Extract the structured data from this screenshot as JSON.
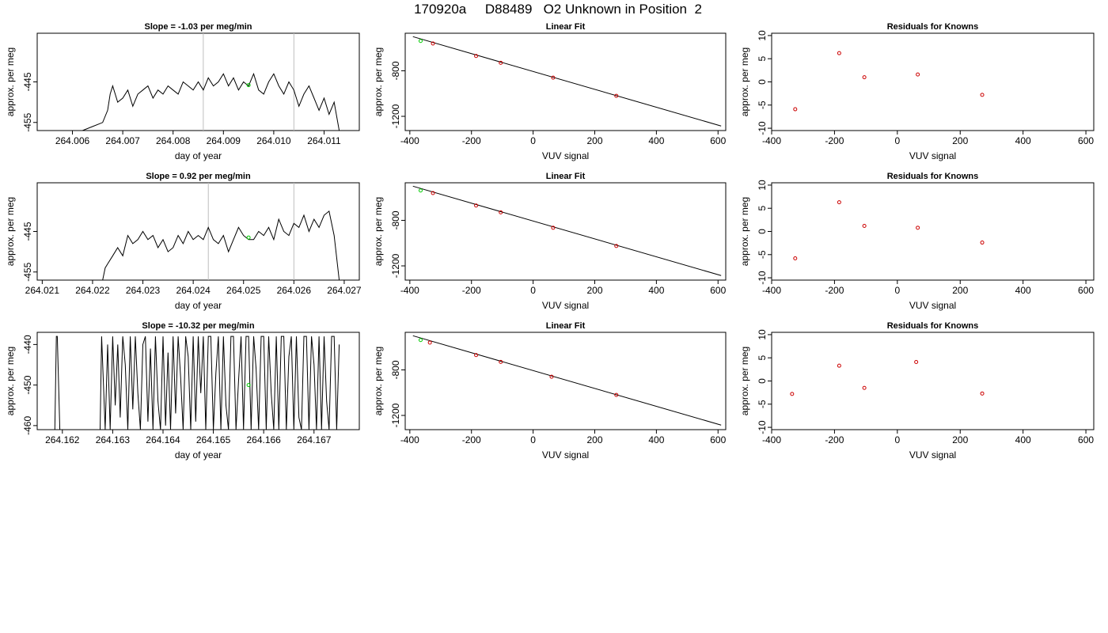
{
  "figure": {
    "title": "170920a     D88489   O2 Unknown in Position  2"
  },
  "colors": {
    "line": "#000000",
    "known_points": "#cc0000",
    "unknown_point": "#00cc00",
    "vertical_markers": "#bebebe"
  },
  "chart_data": [
    {
      "type": "line",
      "title": "Slope =  -1.03  per meg/min",
      "xlabel": "day of year",
      "ylabel": "approx. per meg",
      "xlim": [
        264.0053,
        264.0117
      ],
      "ylim": [
        -457,
        -433
      ],
      "xticks": [
        264.006,
        264.007,
        264.008,
        264.009,
        264.01,
        264.011
      ],
      "xtick_labels": [
        "264.006",
        "264.007",
        "264.008",
        "264.009",
        "264.010",
        "264.011"
      ],
      "yticks": [
        -455,
        -445
      ],
      "ytick_labels": [
        "-455",
        "-445"
      ],
      "vlines": [
        264.0086,
        264.0104
      ],
      "unknown_point": {
        "x": 264.0095,
        "y": -445.8
      },
      "series": [
        {
          "x": [
            264.0062,
            264.0064,
            264.0066,
            264.0067,
            264.00675,
            264.0068,
            264.0069,
            264.007,
            264.0071,
            264.0072,
            264.0073,
            264.0074,
            264.0075,
            264.0076,
            264.0077,
            264.0078,
            264.0079,
            264.008,
            264.0081,
            264.0082,
            264.0083,
            264.0084,
            264.0085,
            264.0086,
            264.0087,
            264.0088,
            264.0089,
            264.009,
            264.0091,
            264.0092,
            264.0093,
            264.0094,
            264.0095,
            264.0096,
            264.0097,
            264.0098,
            264.0099,
            264.01,
            264.0101,
            264.0102,
            264.0103,
            264.0104,
            264.0105,
            264.0106,
            264.0107,
            264.0108,
            264.0109,
            264.011,
            264.0111,
            264.0112,
            264.0113
          ],
          "y": [
            -457,
            -456,
            -455,
            -452,
            -448,
            -446,
            -450,
            -449,
            -447,
            -451,
            -448,
            -447,
            -446,
            -449,
            -447,
            -448,
            -446,
            -447,
            -448,
            -445,
            -446,
            -447,
            -445,
            -447,
            -444,
            -446,
            -445,
            -443,
            -446,
            -444,
            -447,
            -445,
            -446,
            -443,
            -447,
            -448,
            -445,
            -443,
            -446,
            -448,
            -445,
            -447,
            -451,
            -448,
            -446,
            -449,
            -452,
            -449,
            -453,
            -450,
            -457
          ]
        }
      ]
    },
    {
      "type": "scatter",
      "title": "Linear Fit",
      "xlabel": "VUV signal",
      "ylabel": "approx. per meg",
      "xlim": [
        -415,
        625
      ],
      "ylim": [
        -1325,
        -470
      ],
      "xticks": [
        -400,
        -200,
        0,
        200,
        400,
        600
      ],
      "xtick_labels": [
        "-400",
        "-200",
        "0",
        "200",
        "400",
        "600"
      ],
      "yticks": [
        -1200,
        -800
      ],
      "ytick_labels": [
        "-1200",
        "-800"
      ],
      "fit_line": {
        "x": [
          -390,
          610
        ],
        "y": [
          -500,
          -1285
        ]
      },
      "knowns": {
        "x": [
          -325,
          -185,
          -105,
          65,
          270
        ],
        "y": [
          -560,
          -670,
          -730,
          -860,
          -1020
        ]
      },
      "unknown": {
        "x": -365,
        "y": -538
      }
    },
    {
      "type": "scatter",
      "title": "Residuals for Knowns",
      "xlabel": "VUV signal",
      "ylabel": "approx. per meg",
      "xlim": [
        -400,
        625
      ],
      "ylim": [
        -10.5,
        10.5
      ],
      "xticks": [
        -400,
        -200,
        0,
        200,
        400,
        600
      ],
      "xtick_labels": [
        "-400",
        "-200",
        "0",
        "200",
        "400",
        "600"
      ],
      "yticks": [
        -10,
        -5,
        0,
        5,
        10
      ],
      "ytick_labels": [
        "-10",
        "-5",
        "0",
        "5",
        "10"
      ],
      "x": [
        -325,
        -185,
        -105,
        65,
        270
      ],
      "y": [
        -5.9,
        6.2,
        1.0,
        1.6,
        -2.8
      ]
    },
    {
      "type": "line",
      "title": "Slope =  0.92  per meg/min",
      "xlabel": "day of year",
      "ylabel": "approx. per meg",
      "xlim": [
        264.0209,
        264.0273
      ],
      "ylim": [
        -457,
        -433
      ],
      "xticks": [
        264.021,
        264.022,
        264.023,
        264.024,
        264.025,
        264.026,
        264.027
      ],
      "xtick_labels": [
        "264.021",
        "264.022",
        "264.023",
        "264.024",
        "264.025",
        "264.026",
        "264.027"
      ],
      "vlines": [
        264.0243,
        264.026
      ],
      "yticks": [
        -455,
        -445
      ],
      "ytick_labels": [
        "-455",
        "-445"
      ],
      "unknown_point": {
        "x": 264.0251,
        "y": -446.5
      },
      "series": [
        {
          "x": [
            264.0222,
            264.02225,
            264.0223,
            264.0224,
            264.0225,
            264.0226,
            264.0227,
            264.0228,
            264.0229,
            264.023,
            264.0231,
            264.0232,
            264.0233,
            264.0234,
            264.0235,
            264.0236,
            264.0237,
            264.0238,
            264.0239,
            264.024,
            264.0241,
            264.0242,
            264.0243,
            264.0244,
            264.0245,
            264.0246,
            264.0247,
            264.0248,
            264.0249,
            264.025,
            264.0251,
            264.0252,
            264.0253,
            264.0254,
            264.0255,
            264.0256,
            264.0257,
            264.0258,
            264.0259,
            264.026,
            264.0261,
            264.0262,
            264.0263,
            264.0264,
            264.0265,
            264.0266,
            264.0267,
            264.0268,
            264.0269
          ],
          "y": [
            -457,
            -454,
            -453,
            -451,
            -449,
            -451,
            -446,
            -448,
            -447,
            -445,
            -447,
            -446,
            -449,
            -447,
            -450,
            -449,
            -446,
            -448,
            -445,
            -447,
            -446,
            -447,
            -444,
            -447,
            -448,
            -446,
            -450,
            -447,
            -444,
            -446,
            -447,
            -447,
            -445,
            -446,
            -444,
            -447,
            -442,
            -445,
            -446,
            -443,
            -444,
            -441,
            -445,
            -442,
            -444,
            -441,
            -440,
            -446,
            -457
          ]
        }
      ]
    },
    {
      "type": "scatter",
      "title": "Linear Fit",
      "xlabel": "VUV signal",
      "ylabel": "approx. per meg",
      "xlim": [
        -415,
        625
      ],
      "ylim": [
        -1325,
        -470
      ],
      "xticks": [
        -400,
        -200,
        0,
        200,
        400,
        600
      ],
      "xtick_labels": [
        "-400",
        "-200",
        "0",
        "200",
        "400",
        "600"
      ],
      "yticks": [
        -1200,
        -800
      ],
      "ytick_labels": [
        "-1200",
        "-800"
      ],
      "fit_line": {
        "x": [
          -390,
          610
        ],
        "y": [
          -500,
          -1285
        ]
      },
      "knowns": {
        "x": [
          -325,
          -185,
          -105,
          65,
          270
        ],
        "y": [
          -560,
          -670,
          -730,
          -865,
          -1025
        ]
      },
      "unknown": {
        "x": -365,
        "y": -538
      }
    },
    {
      "type": "scatter",
      "title": "Residuals for Knowns",
      "xlabel": "VUV signal",
      "ylabel": "approx. per meg",
      "xlim": [
        -400,
        625
      ],
      "ylim": [
        -10.5,
        10.5
      ],
      "xticks": [
        -400,
        -200,
        0,
        200,
        400,
        600
      ],
      "xtick_labels": [
        "-400",
        "-200",
        "0",
        "200",
        "400",
        "600"
      ],
      "yticks": [
        -10,
        -5,
        0,
        5,
        10
      ],
      "ytick_labels": [
        "-10",
        "-5",
        "0",
        "5",
        "10"
      ],
      "x": [
        -325,
        -185,
        -105,
        65,
        270
      ],
      "y": [
        -5.8,
        6.3,
        1.2,
        0.8,
        -2.4
      ]
    },
    {
      "type": "line",
      "title": "Slope =  -10.32  per meg/min",
      "xlabel": "day of year",
      "ylabel": "approx. per meg",
      "xlim": [
        264.1615,
        264.1679
      ],
      "ylim": [
        -461,
        -437
      ],
      "xticks": [
        264.162,
        264.163,
        264.164,
        264.165,
        264.166,
        264.167
      ],
      "xtick_labels": [
        "264.162",
        "264.163",
        "264.164",
        "264.165",
        "264.166",
        "264.167"
      ],
      "yticks": [
        -460,
        -450,
        -440
      ],
      "ytick_labels": [
        "-460",
        "-450",
        "-440"
      ],
      "vlines": [],
      "unknown_point": {
        "x": 264.1657,
        "y": -450
      },
      "series": [
        {
          "x": [
            264.16185,
            264.16188,
            264.1619,
            264.16195,
            264.16275,
            264.16278,
            264.16285,
            264.1629,
            264.16295,
            264.163,
            264.16305,
            264.1631,
            264.16315,
            264.1632,
            264.16325,
            264.1633,
            264.16335,
            264.1634,
            264.16345,
            264.1635,
            264.16355,
            264.1636,
            264.16365,
            264.1637,
            264.16375,
            264.1638,
            264.16385,
            264.1639,
            264.16395,
            264.164,
            264.16405,
            264.1641,
            264.16415,
            264.1642,
            264.16425,
            264.1643,
            264.16435,
            264.1644,
            264.16445,
            264.1645,
            264.16455,
            264.1646,
            264.16465,
            264.1647,
            264.16475,
            264.1648,
            264.16485,
            264.1649,
            264.16495,
            264.165,
            264.16505,
            264.1651,
            264.16515,
            264.1652,
            264.16525,
            264.1653,
            264.16535,
            264.1654,
            264.16545,
            264.1655,
            264.16555,
            264.1656,
            264.16565,
            264.1657,
            264.16575,
            264.1658,
            264.16585,
            264.1659,
            264.16595,
            264.166,
            264.16605,
            264.1661,
            264.16615,
            264.1662,
            264.16625,
            264.1663,
            264.16635,
            264.1664,
            264.16645,
            264.1665,
            264.16655,
            264.1666,
            264.16665,
            264.1667,
            264.16675,
            264.1668,
            264.16685,
            264.1669,
            264.16695,
            264.167,
            264.16705,
            264.1671,
            264.16715,
            264.1672,
            264.16725,
            264.1673,
            264.16735,
            264.1674,
            264.16745,
            264.1675
          ],
          "y": [
            -461,
            -438,
            -438,
            -461,
            -461,
            -438,
            -461,
            -440,
            -461,
            -438,
            -455,
            -440,
            -458,
            -438,
            -445,
            -461,
            -438,
            -456,
            -438,
            -452,
            -461,
            -440,
            -438,
            -459,
            -441,
            -461,
            -438,
            -454,
            -461,
            -438,
            -460,
            -442,
            -461,
            -438,
            -457,
            -438,
            -448,
            -461,
            -438,
            -443,
            -461,
            -438,
            -459,
            -438,
            -452,
            -438,
            -461,
            -438,
            -438,
            -461,
            -447,
            -438,
            -461,
            -438,
            -455,
            -461,
            -438,
            -438,
            -461,
            -449,
            -438,
            -461,
            -438,
            -438,
            -461,
            -438,
            -446,
            -461,
            -438,
            -438,
            -461,
            -438,
            -452,
            -461,
            -438,
            -461,
            -438,
            -438,
            -461,
            -443,
            -438,
            -461,
            -438,
            -458,
            -461,
            -438,
            -438,
            -461,
            -438,
            -445,
            -461,
            -438,
            -461,
            -438,
            -454,
            -461,
            -438,
            -438,
            -461,
            -440
          ]
        }
      ]
    },
    {
      "type": "scatter",
      "title": "Linear Fit",
      "xlabel": "VUV signal",
      "ylabel": "approx. per meg",
      "xlim": [
        -415,
        625
      ],
      "ylim": [
        -1325,
        -470
      ],
      "xticks": [
        -400,
        -200,
        0,
        200,
        400,
        600
      ],
      "xtick_labels": [
        "-400",
        "-200",
        "0",
        "200",
        "400",
        "600"
      ],
      "yticks": [
        -1200,
        -800
      ],
      "ytick_labels": [
        "-1200",
        "-800"
      ],
      "fit_line": {
        "x": [
          -390,
          610
        ],
        "y": [
          -500,
          -1285
        ]
      },
      "knowns": {
        "x": [
          -335,
          -185,
          -105,
          60,
          270
        ],
        "y": [
          -560,
          -670,
          -730,
          -860,
          -1020
        ]
      },
      "unknown": {
        "x": -365,
        "y": -538
      }
    },
    {
      "type": "scatter",
      "title": "Residuals for Knowns",
      "xlabel": "VUV signal",
      "ylabel": "approx. per meg",
      "xlim": [
        -400,
        625
      ],
      "ylim": [
        -10.5,
        10.5
      ],
      "xticks": [
        -400,
        -200,
        0,
        200,
        400,
        600
      ],
      "xtick_labels": [
        "-400",
        "-200",
        "0",
        "200",
        "400",
        "600"
      ],
      "yticks": [
        -10,
        -5,
        0,
        5,
        10
      ],
      "ytick_labels": [
        "-10",
        "-5",
        "0",
        "5",
        "10"
      ],
      "x": [
        -335,
        -185,
        -105,
        60,
        270
      ],
      "y": [
        -2.8,
        3.3,
        -1.5,
        4.1,
        -2.7
      ]
    }
  ]
}
